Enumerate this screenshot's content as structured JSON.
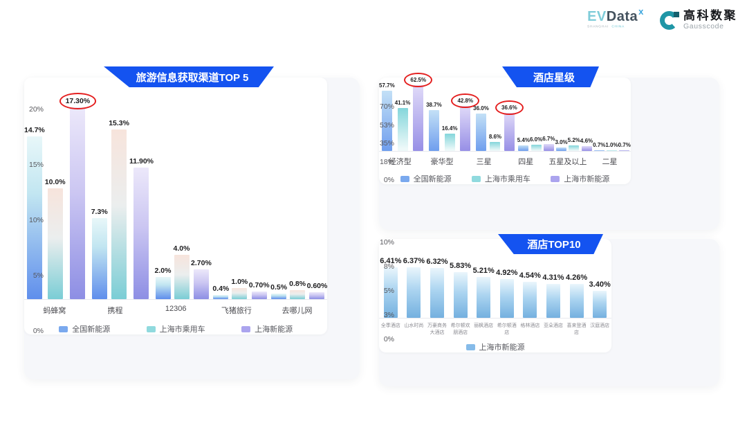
{
  "header": {
    "evdata": {
      "part1": "EV",
      "part2": "Data",
      "mark": "x",
      "sub1": "SHANGHAI",
      "sub2": "CHINA"
    },
    "gausscode": {
      "name_cn": "高科数聚",
      "name_en": "Gausscode"
    }
  },
  "colors": {
    "banner_blue": "#1453f0",
    "highlight_red": "#e41f1f",
    "series_national_nev": "#7aa9ee",
    "series_shanghai_passenger": "#90dade",
    "series_shanghai_nev": "#aba4ee",
    "series_hotel_top10": "#86bbe9"
  },
  "chart_data": [
    {
      "type": "bar",
      "title": "旅游信息获取渠道TOP 5",
      "categories": [
        "蚂蜂窝",
        "携程",
        "12306",
        "飞猪旅行",
        "去哪儿网"
      ],
      "yticks": [
        "20%",
        "15%",
        "10%",
        "5%",
        "0%"
      ],
      "ylim": [
        0,
        20
      ],
      "grid": false,
      "legend_position": "bottom",
      "series": [
        {
          "name": "全国新能源",
          "color": "#7aa9ee",
          "values": [
            14.7,
            7.3,
            2.0,
            0.4,
            0.5
          ],
          "labels": [
            "14.7%",
            "7.3%",
            "2.0%",
            "0.4%",
            "0.5%"
          ]
        },
        {
          "name": "上海市乘用车",
          "color": "#90dade",
          "values": [
            10.0,
            15.3,
            4.0,
            1.0,
            0.8
          ],
          "labels": [
            "10.0%",
            "15.3%",
            "4.0%",
            "1.0%",
            "0.8%"
          ]
        },
        {
          "name": "上海新能源",
          "color": "#aba4ee",
          "values": [
            17.3,
            11.9,
            2.7,
            0.7,
            0.6
          ],
          "labels": [
            "17.30%",
            "11.90%",
            "2.70%",
            "0.70%",
            "0.60%"
          ]
        }
      ],
      "circled": [
        {
          "series": 2,
          "category": 0
        }
      ]
    },
    {
      "type": "bar",
      "title": "酒店星级",
      "categories": [
        "经济型",
        "豪华型",
        "三星",
        "四星",
        "五星及以上",
        "二星"
      ],
      "yticks": [
        "70%",
        "53%",
        "35%",
        "18%",
        "0%"
      ],
      "ylim": [
        0,
        70
      ],
      "grid": false,
      "legend_position": "bottom",
      "series": [
        {
          "name": "全国新能源",
          "color": "#7aa9ee",
          "values": [
            57.7,
            38.7,
            36.0,
            5.4,
            3.0,
            0.7
          ],
          "labels": [
            "57.7%",
            "38.7%",
            "36.0%",
            "5.4%",
            "3.0%",
            "0.7%"
          ]
        },
        {
          "name": "上海市乘用车",
          "color": "#90dade",
          "values": [
            41.1,
            16.4,
            8.6,
            6.0,
            5.2,
            1.0
          ],
          "labels": [
            "41.1%",
            "16.4%",
            "8.6%",
            "6.0%",
            "5.2%",
            "1.0%"
          ]
        },
        {
          "name": "上海市新能源",
          "color": "#aba4ee",
          "values": [
            62.5,
            42.8,
            36.6,
            6.7,
            4.6,
            0.7
          ],
          "labels": [
            "62.5%",
            "42.8%",
            "36.6%",
            "6.7%",
            "4.6%",
            "0.7%"
          ]
        }
      ],
      "circled": [
        {
          "series": 2,
          "category": 0
        },
        {
          "series": 2,
          "category": 1
        },
        {
          "series": 2,
          "category": 2
        }
      ]
    },
    {
      "type": "bar",
      "title": "酒店TOP10",
      "categories": [
        "全季酒店",
        "山水时尚",
        "万豪商务大酒店",
        "希尔顿欢朋酒店",
        "丽枫酒店",
        "希尔顿酒店",
        "格林酒店",
        "亚朵酒店",
        "喜来登酒店",
        "汉庭酒店"
      ],
      "yticks": [
        "10%",
        "8%",
        "5%",
        "3%",
        "0%"
      ],
      "ylim": [
        0,
        10
      ],
      "grid": false,
      "legend_position": "bottom",
      "series": [
        {
          "name": "上海市新能源",
          "color": "#86bbe9",
          "values": [
            6.41,
            6.37,
            6.32,
            5.83,
            5.21,
            4.92,
            4.54,
            4.31,
            4.26,
            3.4
          ],
          "labels": [
            "6.41%",
            "6.37%",
            "6.32%",
            "5.83%",
            "5.21%",
            "4.92%",
            "4.54%",
            "4.31%",
            "4.26%",
            "3.40%"
          ]
        }
      ],
      "circled": []
    }
  ]
}
